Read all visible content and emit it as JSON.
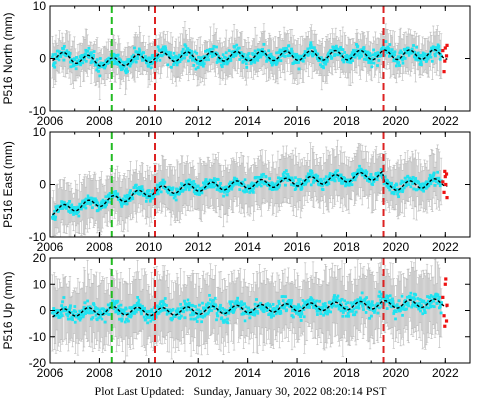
{
  "footer": {
    "label": "Plot Last Updated:",
    "timestamp": "Sunday, January 30, 2022 08:20:14 PST"
  },
  "chart_data": [
    {
      "type": "scatter",
      "ylabel": "P516 North (mm)",
      "ylim": [
        -10,
        10
      ],
      "yticks": [
        -10,
        0,
        10
      ],
      "xlim": [
        2006,
        2023
      ],
      "xticks": [
        2006,
        2008,
        2010,
        2012,
        2014,
        2016,
        2018,
        2020,
        2022
      ],
      "events": [
        {
          "x": 2008.5,
          "color": "#22bb22",
          "style": "dashed"
        },
        {
          "x": 2010.25,
          "color": "#dd2222",
          "style": "dashed"
        },
        {
          "x": 2019.5,
          "color": "#dd2222",
          "style": "dashed"
        }
      ],
      "data_range": [
        2006.1,
        2022.08
      ],
      "model": {
        "trend": [
          [
            2006.1,
            0.5
          ],
          [
            2008.5,
            -0.8
          ],
          [
            2010.25,
            0.3
          ],
          [
            2022.08,
            0.8
          ]
        ],
        "seasonal_amplitude": 0.9
      },
      "scatter_spread": 2.2,
      "error_bar": 3.5,
      "recent_red_points": [
        [
          2021.9,
          1.5
        ],
        [
          2021.95,
          -2.5
        ],
        [
          2022.0,
          2.0
        ],
        [
          2022.05,
          0.5
        ],
        [
          2022.07,
          2.5
        ],
        [
          2021.98,
          -0.5
        ]
      ],
      "grid": false
    },
    {
      "type": "scatter",
      "ylabel": "P516 East (mm)",
      "ylim": [
        -10,
        10
      ],
      "yticks": [
        -10,
        0,
        10
      ],
      "xlim": [
        2006,
        2023
      ],
      "xticks": [
        2006,
        2008,
        2010,
        2012,
        2014,
        2016,
        2018,
        2020,
        2022
      ],
      "events": [
        {
          "x": 2008.5,
          "color": "#22bb22",
          "style": "dashed"
        },
        {
          "x": 2010.25,
          "color": "#dd2222",
          "style": "dashed"
        },
        {
          "x": 2019.5,
          "color": "#dd2222",
          "style": "dashed"
        }
      ],
      "data_range": [
        2006.1,
        2022.08
      ],
      "model": {
        "trend": [
          [
            2006.1,
            -5.0
          ],
          [
            2008.5,
            -3.0
          ],
          [
            2010.25,
            -1.2
          ],
          [
            2012,
            -0.5
          ],
          [
            2016,
            0.5
          ],
          [
            2019.45,
            1.8
          ],
          [
            2019.55,
            -0.5
          ],
          [
            2022.08,
            0.5
          ]
        ],
        "seasonal_amplitude": 0.8
      },
      "scatter_spread": 1.8,
      "error_bar": 4.5,
      "recent_red_points": [
        [
          2021.9,
          0.5
        ],
        [
          2021.95,
          -1.5
        ],
        [
          2022.0,
          1.5
        ],
        [
          2022.05,
          2.0
        ],
        [
          2022.07,
          -2.5
        ],
        [
          2021.98,
          2.5
        ],
        [
          2022.02,
          0.0
        ]
      ],
      "grid": false
    },
    {
      "type": "scatter",
      "ylabel": "P516 Up (mm)",
      "ylim": [
        -20,
        20
      ],
      "yticks": [
        -20,
        -10,
        0,
        10,
        20
      ],
      "xlim": [
        2006,
        2023
      ],
      "xticks": [
        2006,
        2008,
        2010,
        2012,
        2014,
        2016,
        2018,
        2020,
        2022
      ],
      "events": [
        {
          "x": 2008.5,
          "color": "#22bb22",
          "style": "dashed"
        },
        {
          "x": 2010.25,
          "color": "#dd2222",
          "style": "dashed"
        },
        {
          "x": 2019.5,
          "color": "#dd2222",
          "style": "dashed"
        }
      ],
      "data_range": [
        2006.1,
        2022.08
      ],
      "model": {
        "trend": [
          [
            2006.1,
            -1.0
          ],
          [
            2008.5,
            0.0
          ],
          [
            2010.25,
            -0.5
          ],
          [
            2022.08,
            3.0
          ]
        ],
        "seasonal_amplitude": 1.5
      },
      "scatter_spread": 5.5,
      "error_bar": 12,
      "recent_red_points": [
        [
          2021.9,
          5.0
        ],
        [
          2021.95,
          -2.0
        ],
        [
          2022.0,
          10.0
        ],
        [
          2022.05,
          -4.0
        ],
        [
          2022.07,
          2.0
        ],
        [
          2021.98,
          -6.0
        ],
        [
          2022.02,
          12.0
        ]
      ],
      "grid": false
    }
  ]
}
